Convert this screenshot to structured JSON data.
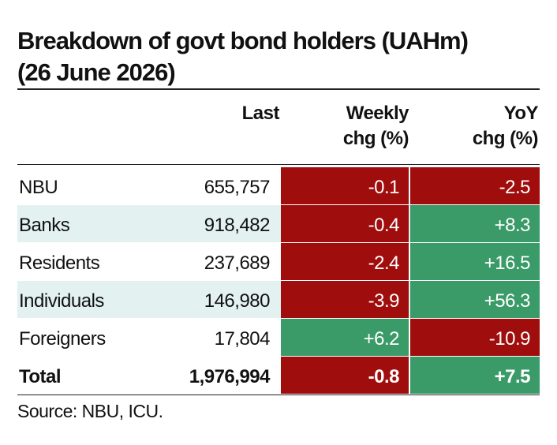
{
  "title": [
    "Breakdown of govt bond holders (UAHm)",
    "(26 June 2026)"
  ],
  "table": {
    "header": [
      "Last",
      "Weekly\nchg (%)",
      "YoY\nchg (%)"
    ],
    "rows": [
      [
        "NBU",
        "655,757",
        "-0.1",
        "-2.5"
      ],
      [
        "Banks",
        "918,482",
        "-0.4",
        "+8.3"
      ],
      [
        "Residents",
        "237,689",
        "-2.4",
        "+16.5"
      ],
      [
        "Individuals",
        "146,980",
        "-3.9",
        "+56.3"
      ],
      [
        "Foreigners",
        "17,804",
        "+6.2",
        "-10.9"
      ],
      [
        "Total",
        "1,976,994",
        "-0.8",
        "+7.5"
      ]
    ]
  },
  "source": "Source: NBU, ICU."
}
